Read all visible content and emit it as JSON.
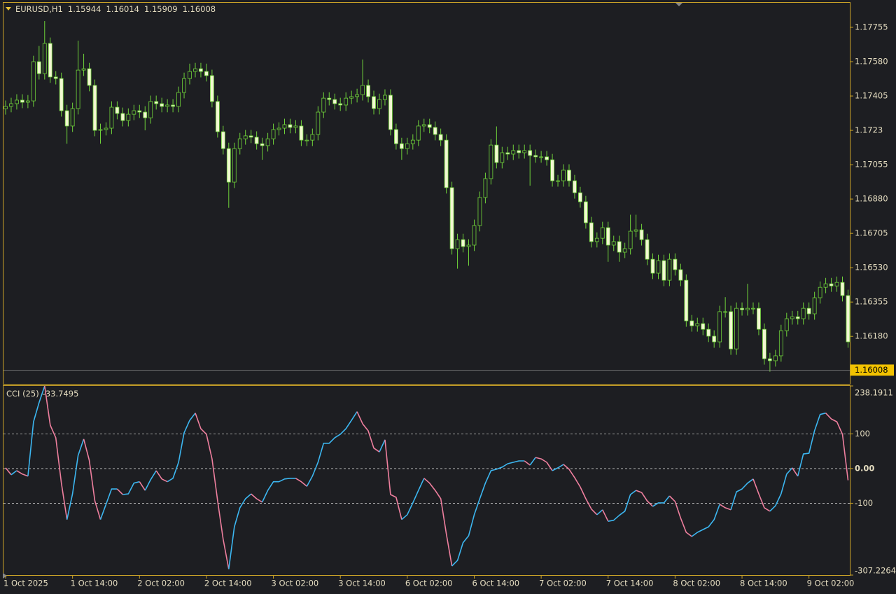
{
  "chart_data": [
    {
      "type": "candlestick",
      "title": "EURUSD,H1",
      "header_ohlc": [
        1.15944,
        1.16014,
        1.15909,
        1.16008
      ],
      "ylim": [
        1.15938,
        1.1788
      ],
      "yticks": [
        1.17755,
        {
          "value": 1.1758,
          "label": "1.17580"
        },
        1.17405,
        1.1723,
        1.17055,
        {
          "value": 1.1688,
          "label": "1.16880"
        },
        1.16705,
        {
          "value": 1.1653,
          "label": "1.16530"
        },
        1.16355,
        {
          "value": 1.1618,
          "label": "1.16180"
        }
      ],
      "up_body": "#1d1e22",
      "down_body": "#f2f8d2",
      "wick_color": "#6fd23a",
      "open": [
        1.1734,
        1.17352,
        1.17366,
        1.17384,
        1.17373,
        1.1738,
        1.1758,
        1.17519,
        1.17673,
        1.17502,
        1.17494,
        1.1733,
        1.17252,
        1.17341,
        1.17537,
        1.17544,
        1.17459,
        1.1723,
        1.17234,
        1.17241,
        1.17348,
        1.17316,
        1.1728,
        1.17312,
        1.1733,
        1.17323,
        1.17294,
        1.17377,
        1.17366,
        1.17352,
        1.17359,
        1.17352,
        1.17423,
        1.17494,
        1.1753,
        1.17544,
        1.1753,
        1.17509,
        1.17377,
        1.17223,
        1.17137,
        1.16966,
        1.17137,
        1.17187,
        1.17202,
        1.17195,
        1.17162,
        1.17152,
        1.17187,
        1.17234,
        1.17241,
        1.17259,
        1.17245,
        1.17252,
        1.1718,
        1.1718,
        1.17209,
        1.17323,
        1.17394,
        1.17387,
        1.17366,
        1.17359,
        1.17394,
        1.17402,
        1.17412,
        1.17459,
        1.17402,
        1.17341,
        1.17387,
        1.17409,
        1.17234,
        1.17162,
        1.17137,
        1.17162,
        1.1718,
        1.17252,
        1.17259,
        1.17245,
        1.17209,
        1.1718,
        1.16938,
        1.16627,
        1.16673,
        1.16638,
        1.16645,
        1.16745,
        1.16888,
        1.16984,
        1.17155,
        1.17066,
        1.17116,
        1.17109,
        1.17127,
        1.17116,
        1.17127,
        1.17102,
        1.17095,
        1.17095,
        1.1708,
        1.16973,
        1.16973,
        1.17027,
        1.16973,
        1.16912,
        1.16866,
        1.16759,
        1.16663,
        1.1668,
        1.16734,
        1.16645,
        1.16663,
        1.16609,
        1.16627,
        1.16716,
        1.16723,
        1.16673,
        1.16573,
        1.16502,
        1.16566,
        1.16466,
        1.16573,
        1.1652,
        1.16466,
        1.16259,
        1.16234,
        1.16245,
        1.16216,
        1.16181,
        1.16152,
        1.16306,
        1.16306,
        1.16116,
        1.16323,
        1.16316,
        1.16323,
        1.16323,
        1.16216,
        1.16066,
        1.16056,
        1.16081,
        1.16209,
        1.1627,
        1.1628,
        1.1627,
        1.16323,
        1.16295,
        1.16377,
        1.1643,
        1.16448,
        1.16437,
        1.16455,
        1.16388
      ],
      "high": [
        1.17382,
        1.17396,
        1.17414,
        1.17414,
        1.1741,
        1.1761,
        1.1766,
        1.17787,
        1.17703,
        1.17532,
        1.17524,
        1.1736,
        1.17371,
        1.17687,
        1.1762,
        1.17574,
        1.17489,
        1.17264,
        1.17271,
        1.17378,
        1.17378,
        1.17346,
        1.17342,
        1.1736,
        1.1736,
        1.17353,
        1.17407,
        1.17407,
        1.17396,
        1.17389,
        1.17389,
        1.17453,
        1.17524,
        1.1757,
        1.17574,
        1.17574,
        1.1757,
        1.17539,
        1.17407,
        1.17253,
        1.17167,
        1.17167,
        1.17217,
        1.17232,
        1.17232,
        1.17225,
        1.17192,
        1.17217,
        1.17264,
        1.17271,
        1.17289,
        1.17289,
        1.17282,
        1.17282,
        1.1721,
        1.17239,
        1.17353,
        1.17424,
        1.17424,
        1.17417,
        1.17396,
        1.17424,
        1.17432,
        1.17442,
        1.17591,
        1.17489,
        1.17432,
        1.17417,
        1.17439,
        1.17439,
        1.17264,
        1.17192,
        1.17192,
        1.1721,
        1.17282,
        1.17289,
        1.17289,
        1.17275,
        1.17239,
        1.1721,
        1.16968,
        1.16703,
        1.16703,
        1.16675,
        1.16775,
        1.16918,
        1.17014,
        1.17185,
        1.1725,
        1.17146,
        1.17146,
        1.17157,
        1.17157,
        1.17157,
        1.17157,
        1.17132,
        1.17125,
        1.17125,
        1.1711,
        1.17003,
        1.17057,
        1.17057,
        1.17003,
        1.16942,
        1.16896,
        1.16789,
        1.1671,
        1.16764,
        1.16764,
        1.16693,
        1.16693,
        1.16657,
        1.168,
        1.168,
        1.16753,
        1.16703,
        1.16603,
        1.16596,
        1.16596,
        1.16603,
        1.16603,
        1.1655,
        1.16496,
        1.16289,
        1.16275,
        1.16275,
        1.16246,
        1.16211,
        1.16336,
        1.1638,
        1.16336,
        1.16353,
        1.16353,
        1.16448,
        1.16353,
        1.16353,
        1.16246,
        1.16096,
        1.16111,
        1.16239,
        1.163,
        1.1631,
        1.1631,
        1.16353,
        1.16353,
        1.16407,
        1.1646,
        1.16478,
        1.16478,
        1.16485,
        1.16485,
        1.16418
      ],
      "low": [
        1.1731,
        1.17322,
        1.17336,
        1.17343,
        1.17343,
        1.1735,
        1.17489,
        1.17489,
        1.17472,
        1.17464,
        1.173,
        1.17162,
        1.17222,
        1.17311,
        1.17507,
        1.17429,
        1.172,
        1.17162,
        1.17204,
        1.17211,
        1.17286,
        1.1725,
        1.1725,
        1.17282,
        1.17293,
        1.1723,
        1.17264,
        1.17336,
        1.17322,
        1.17322,
        1.17322,
        1.17322,
        1.17393,
        1.17464,
        1.175,
        1.175,
        1.17479,
        1.17347,
        1.17193,
        1.17107,
        1.16835,
        1.16936,
        1.17107,
        1.17157,
        1.17165,
        1.17132,
        1.1708,
        1.17122,
        1.17157,
        1.17204,
        1.17211,
        1.17215,
        1.17215,
        1.1715,
        1.1715,
        1.1715,
        1.17179,
        1.17293,
        1.17357,
        1.17336,
        1.17329,
        1.17329,
        1.17364,
        1.17372,
        1.17382,
        1.17372,
        1.17311,
        1.17311,
        1.17357,
        1.17204,
        1.17132,
        1.1708,
        1.17107,
        1.17132,
        1.1715,
        1.17222,
        1.17215,
        1.17179,
        1.1715,
        1.16908,
        1.16597,
        1.16525,
        1.16608,
        1.1654,
        1.16615,
        1.16715,
        1.16858,
        1.16954,
        1.17036,
        1.17036,
        1.17079,
        1.17079,
        1.17086,
        1.17086,
        1.16948,
        1.17065,
        1.17065,
        1.1705,
        1.16943,
        1.16943,
        1.16943,
        1.16943,
        1.16882,
        1.16836,
        1.16729,
        1.16633,
        1.16633,
        1.1665,
        1.1656,
        1.16615,
        1.1656,
        1.16579,
        1.16597,
        1.16686,
        1.16643,
        1.16543,
        1.16472,
        1.16472,
        1.16436,
        1.16436,
        1.1649,
        1.16436,
        1.16229,
        1.16204,
        1.16204,
        1.16186,
        1.16151,
        1.16122,
        1.16122,
        1.16276,
        1.16086,
        1.16086,
        1.16286,
        1.16286,
        1.16293,
        1.16186,
        1.16036,
        1.16,
        1.16026,
        1.16051,
        1.16179,
        1.1624,
        1.1624,
        1.1624,
        1.16265,
        1.16265,
        1.16347,
        1.164,
        1.16407,
        1.16407,
        1.16358,
        1.16122
      ],
      "close": [
        1.17352,
        1.17366,
        1.17384,
        1.17373,
        1.1738,
        1.1758,
        1.17519,
        1.17673,
        1.17502,
        1.17494,
        1.1733,
        1.17252,
        1.17341,
        1.17537,
        1.17544,
        1.17459,
        1.1723,
        1.17234,
        1.17241,
        1.17348,
        1.17316,
        1.1728,
        1.17312,
        1.1733,
        1.17323,
        1.17294,
        1.17377,
        1.17366,
        1.17352,
        1.17359,
        1.17352,
        1.17423,
        1.17494,
        1.1753,
        1.17544,
        1.1753,
        1.17509,
        1.17377,
        1.17223,
        1.17137,
        1.16966,
        1.17137,
        1.17187,
        1.17202,
        1.17195,
        1.17162,
        1.17152,
        1.17187,
        1.17234,
        1.17241,
        1.17259,
        1.17245,
        1.17252,
        1.1718,
        1.1718,
        1.17209,
        1.17323,
        1.17394,
        1.17387,
        1.17366,
        1.17359,
        1.17394,
        1.17402,
        1.17412,
        1.17459,
        1.17402,
        1.17341,
        1.17387,
        1.17409,
        1.17234,
        1.17162,
        1.17137,
        1.17162,
        1.1718,
        1.17252,
        1.17259,
        1.17245,
        1.17209,
        1.1718,
        1.16938,
        1.16627,
        1.16673,
        1.16638,
        1.16645,
        1.16745,
        1.16888,
        1.16984,
        1.17155,
        1.17066,
        1.17116,
        1.17109,
        1.17127,
        1.17116,
        1.17127,
        1.17102,
        1.17095,
        1.17095,
        1.1708,
        1.16973,
        1.16973,
        1.17027,
        1.16973,
        1.16912,
        1.16866,
        1.16759,
        1.16663,
        1.1668,
        1.16734,
        1.16645,
        1.16663,
        1.16609,
        1.16627,
        1.16716,
        1.16723,
        1.16673,
        1.16573,
        1.16502,
        1.16566,
        1.16466,
        1.16573,
        1.1652,
        1.16466,
        1.16259,
        1.16234,
        1.16245,
        1.16216,
        1.16181,
        1.16152,
        1.16306,
        1.16306,
        1.16116,
        1.16323,
        1.16316,
        1.16323,
        1.16323,
        1.16216,
        1.16066,
        1.16056,
        1.16081,
        1.16209,
        1.1627,
        1.1628,
        1.1627,
        1.16323,
        1.16295,
        1.16377,
        1.1643,
        1.16448,
        1.16437,
        1.16455,
        1.16388,
        1.16152
      ]
    },
    {
      "type": "line",
      "title": "CCI (25)",
      "up_color": "#3cb6f0",
      "down_color": "#ee7f9e",
      "ylim": [
        -307.2264,
        238.1911
      ],
      "yticks": [
        238.1911,
        100,
        {
          "value": 0,
          "label": "0.00"
        },
        -100,
        -307.2264
      ],
      "categories": [
        "1 Oct 2025",
        null,
        null,
        null,
        null,
        null,
        null,
        null,
        null,
        null,
        null,
        null,
        "1 Oct 14:00",
        null,
        null,
        null,
        null,
        null,
        null,
        null,
        null,
        null,
        null,
        null,
        "2 Oct 02:00",
        null,
        null,
        null,
        null,
        null,
        null,
        null,
        null,
        null,
        null,
        null,
        "2 Oct 14:00",
        null,
        null,
        null,
        null,
        null,
        null,
        null,
        null,
        null,
        null,
        null,
        "3 Oct 02:00",
        null,
        null,
        null,
        null,
        null,
        null,
        null,
        null,
        null,
        null,
        null,
        "3 Oct 14:00",
        null,
        null,
        null,
        null,
        null,
        null,
        null,
        null,
        null,
        null,
        null,
        "6 Oct 02:00",
        null,
        null,
        null,
        null,
        null,
        null,
        null,
        null,
        null,
        null,
        null,
        "6 Oct 14:00",
        null,
        null,
        null,
        null,
        null,
        null,
        null,
        null,
        null,
        null,
        null,
        "7 Oct 02:00",
        null,
        null,
        null,
        null,
        null,
        null,
        null,
        null,
        null,
        null,
        null,
        "7 Oct 14:00",
        null,
        null,
        null,
        null,
        null,
        null,
        null,
        null,
        null,
        null,
        null,
        "8 Oct 02:00",
        null,
        null,
        null,
        null,
        null,
        null,
        null,
        null,
        null,
        null,
        null,
        "8 Oct 14:00",
        null,
        null,
        null,
        null,
        null,
        null,
        null,
        null,
        null,
        null,
        null,
        "9 Oct 02:00",
        null,
        null,
        null,
        null,
        null,
        null,
        null
      ],
      "values": [
        2,
        -18,
        -6,
        -16,
        -22,
        135,
        190,
        238.1911,
        125,
        89,
        -42,
        -147,
        -73,
        38,
        85,
        24,
        -93,
        -147,
        -103,
        -59,
        -59,
        -75,
        -73,
        -42,
        -38,
        -63,
        -32,
        -6,
        -30,
        -38,
        -28,
        18,
        103,
        139,
        160,
        115,
        99,
        28,
        -93,
        -204,
        -290,
        -168,
        -113,
        -87,
        -73,
        -87,
        -97,
        -63,
        -38,
        -38,
        -30,
        -28,
        -28,
        -38,
        -51,
        -22,
        18,
        73,
        73,
        89,
        99,
        115,
        139,
        164,
        129,
        109,
        59,
        48,
        83,
        -75,
        -83,
        -147,
        -133,
        -99,
        -63,
        -28,
        -42,
        -63,
        -87,
        -188,
        -281,
        -265,
        -214,
        -194,
        -133,
        -87,
        -42,
        -6,
        -2,
        4,
        14,
        18,
        22,
        22,
        10,
        32,
        28,
        18,
        -6,
        2,
        12,
        -2,
        -26,
        -53,
        -87,
        -117,
        -133,
        -119,
        -152,
        -149,
        -135,
        -123,
        -75,
        -63,
        -69,
        -93,
        -109,
        -99,
        -99,
        -79,
        -95,
        -143,
        -184,
        -196,
        -184,
        -176,
        -168,
        -147,
        -103,
        -113,
        -119,
        -67,
        -59,
        -42,
        -30,
        -73,
        -113,
        -123,
        -107,
        -73,
        -16,
        2,
        -22,
        42,
        44,
        109,
        156,
        160,
        143,
        135,
        99,
        -33.7495
      ]
    }
  ]
}
